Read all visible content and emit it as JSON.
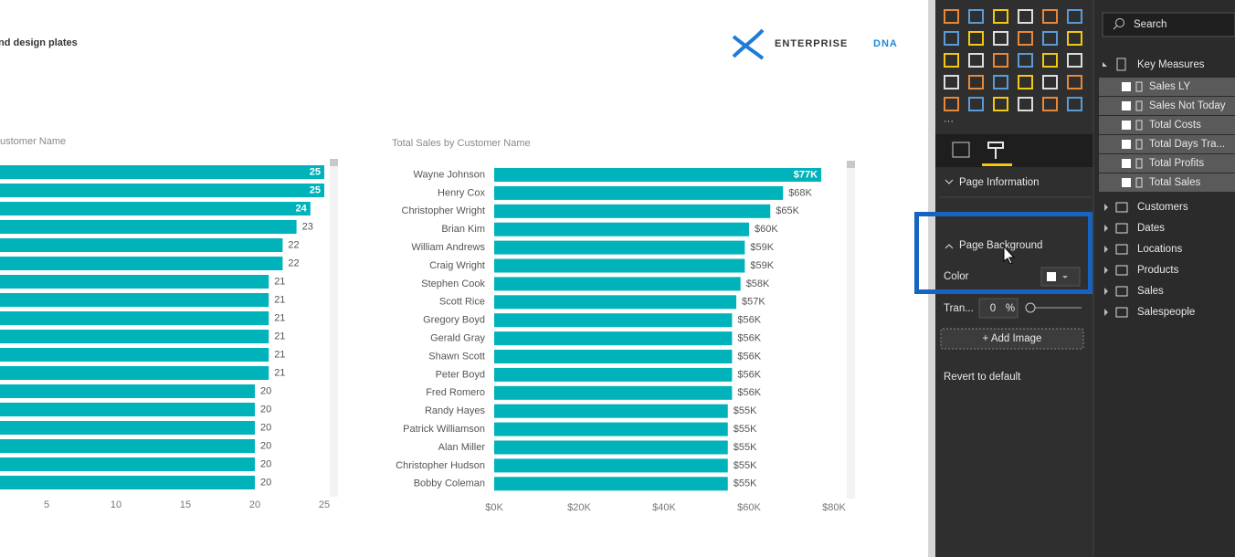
{
  "header": {
    "title": "nd design plates"
  },
  "logo": {
    "word1": "ENTERPRISE",
    "word2": "DNA"
  },
  "charts": [
    {
      "type": "bar",
      "orientation": "horizontal",
      "title": "ustomer Name",
      "values": [
        25,
        25,
        24,
        23,
        22,
        22,
        21,
        21,
        21,
        21,
        21,
        21,
        20,
        20,
        20,
        20,
        20,
        20
      ],
      "color": "#00b2ba",
      "xlim": [
        0,
        25
      ],
      "xticks": [
        5,
        10,
        15,
        20,
        25
      ]
    },
    {
      "type": "bar",
      "orientation": "horizontal",
      "title": "Total Sales by Customer Name",
      "categories": [
        "Wayne Johnson",
        "Henry Cox",
        "Christopher Wright",
        "Brian Kim",
        "William Andrews",
        "Craig Wright",
        "Stephen Cook",
        "Scott Rice",
        "Gregory Boyd",
        "Gerald Gray",
        "Shawn Scott",
        "Peter Boyd",
        "Fred Romero",
        "Randy Hayes",
        "Patrick Williamson",
        "Alan Miller",
        "Christopher Hudson",
        "Bobby Coleman"
      ],
      "values": [
        77000,
        68000,
        65000,
        60000,
        59000,
        59000,
        58000,
        57000,
        56000,
        56000,
        56000,
        56000,
        56000,
        55000,
        55000,
        55000,
        55000,
        55000
      ],
      "value_labels": [
        "$77K",
        "$68K",
        "$65K",
        "$60K",
        "$59K",
        "$59K",
        "$58K",
        "$57K",
        "$56K",
        "$56K",
        "$56K",
        "$56K",
        "$56K",
        "$55K",
        "$55K",
        "$55K",
        "$55K",
        "$55K"
      ],
      "color": "#00b2ba",
      "xlim": [
        0,
        80000
      ],
      "xticks": [
        {
          "value": 0,
          "label": "$0K"
        },
        {
          "value": 20000,
          "label": "$20K"
        },
        {
          "value": 40000,
          "label": "$40K"
        },
        {
          "value": 60000,
          "label": "$60K"
        },
        {
          "value": 80000,
          "label": "$80K"
        }
      ]
    }
  ],
  "format_pane": {
    "sections": [
      "Page Information",
      "Page Background"
    ],
    "color_label": "Color",
    "transparency_label": "Tran...",
    "transparency_value": 0,
    "transparency_unit": "%",
    "add_image": "+ Add Image",
    "revert": "Revert to default"
  },
  "fields_pane": {
    "search": "Search",
    "group": "Key Measures",
    "measures": [
      "Sales LY",
      "Sales Not Today",
      "Total Costs",
      "Total Days Tra...",
      "Total Profits",
      "Total Sales"
    ],
    "tables": [
      "Customers",
      "Dates",
      "Locations",
      "Products",
      "Sales",
      "Salespeople"
    ]
  }
}
